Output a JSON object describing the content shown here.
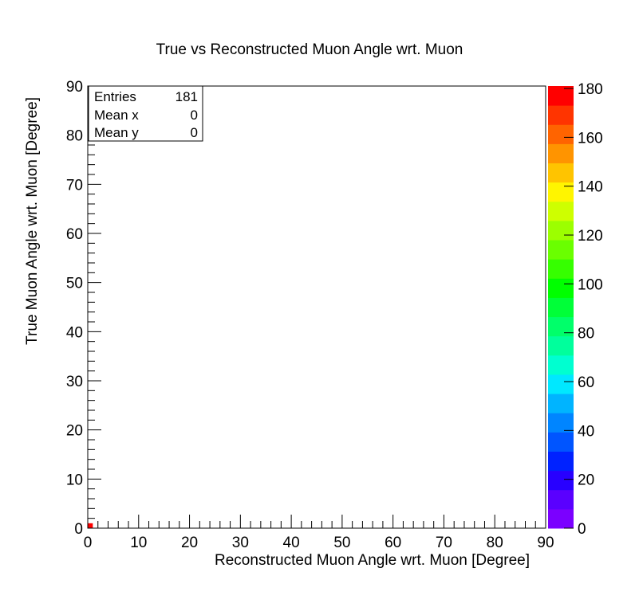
{
  "chart_data": {
    "type": "heatmap",
    "title": "True vs Reconstructed Muon Angle wrt. Muon",
    "xlabel": "Reconstructed Muon Angle wrt. Muon [Degree]",
    "ylabel": "True Muon Angle wrt. Muon [Degree]",
    "xlim": [
      0,
      90
    ],
    "ylim": [
      0,
      90
    ],
    "x_ticks": [
      "0",
      "10",
      "20",
      "30",
      "40",
      "50",
      "60",
      "70",
      "80",
      "90"
    ],
    "y_ticks": [
      "0",
      "10",
      "20",
      "30",
      "40",
      "50",
      "60",
      "70",
      "80",
      "90"
    ],
    "grid": false,
    "cells": [
      {
        "x": 0,
        "y": 0,
        "count": 181
      }
    ],
    "stats_box": {
      "position": "top-left",
      "rows": [
        {
          "label": "Entries",
          "value": "181"
        },
        {
          "label": "Mean x",
          "value": "0"
        },
        {
          "label": "Mean y",
          "value": "0"
        }
      ]
    },
    "colorbar": {
      "range": [
        0,
        181
      ],
      "tick_labels": [
        "0",
        "20",
        "40",
        "60",
        "80",
        "100",
        "120",
        "140",
        "160",
        "180"
      ],
      "colors": [
        "#7b00ff",
        "#5a00ff",
        "#2800ff",
        "#0022ff",
        "#0055ff",
        "#0085ff",
        "#00b4ff",
        "#00e8ff",
        "#00ffd0",
        "#00ff9c",
        "#00ff6a",
        "#00ff38",
        "#00ff00",
        "#36ff00",
        "#6aff00",
        "#9cff00",
        "#ceff00",
        "#fff500",
        "#ffc400",
        "#ff9400",
        "#ff6400",
        "#ff3400",
        "#ff0000"
      ]
    }
  }
}
